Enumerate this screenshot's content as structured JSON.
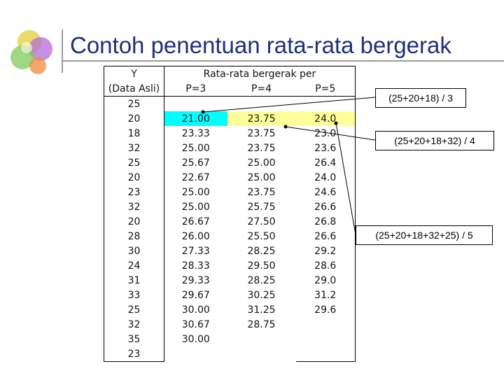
{
  "title": "Contoh penentuan rata-rata bergerak",
  "header": {
    "y_line1": "Y",
    "y_line2": "(Data Asli)",
    "group": "Rata-rata bergerak per",
    "p3": "P=3",
    "p4": "P=4",
    "p5": "P=5"
  },
  "rows": [
    {
      "y": "25",
      "p3": "",
      "p4": "",
      "p5": ""
    },
    {
      "y": "20",
      "p3": "21.00",
      "p4": "23.75",
      "p5": "24.0"
    },
    {
      "y": "18",
      "p3": "23.33",
      "p4": "23.75",
      "p5": "23.0"
    },
    {
      "y": "32",
      "p3": "25.00",
      "p4": "23.75",
      "p5": "23.6"
    },
    {
      "y": "25",
      "p3": "25.67",
      "p4": "25.00",
      "p5": "26.4"
    },
    {
      "y": "20",
      "p3": "22.67",
      "p4": "25.00",
      "p5": "24.0"
    },
    {
      "y": "23",
      "p3": "25.00",
      "p4": "23.75",
      "p5": "24.6"
    },
    {
      "y": "32",
      "p3": "25.00",
      "p4": "25.75",
      "p5": "26.6"
    },
    {
      "y": "20",
      "p3": "26.67",
      "p4": "27.50",
      "p5": "26.8"
    },
    {
      "y": "28",
      "p3": "26.00",
      "p4": "25.50",
      "p5": "26.6"
    },
    {
      "y": "30",
      "p3": "27.33",
      "p4": "28.25",
      "p5": "29.2"
    },
    {
      "y": "24",
      "p3": "28.33",
      "p4": "29.50",
      "p5": "28.6"
    },
    {
      "y": "31",
      "p3": "29.33",
      "p4": "28.25",
      "p5": "29.0"
    },
    {
      "y": "33",
      "p3": "29.67",
      "p4": "30.25",
      "p5": "31.2"
    },
    {
      "y": "25",
      "p3": "30.00",
      "p4": "31.25",
      "p5": "29.6"
    },
    {
      "y": "32",
      "p3": "30.67",
      "p4": "28.75",
      "p5": ""
    },
    {
      "y": "35",
      "p3": "30.00",
      "p4": "",
      "p5": ""
    },
    {
      "y": "23",
      "p3": "",
      "p4": "",
      "p5": ""
    }
  ],
  "callouts": {
    "p3": "(25+20+18) / 3",
    "p4": "(25+20+18+32) / 4",
    "p5": "(25+20+18+32+25) / 5"
  },
  "colors": {
    "title": "#1f2f7a",
    "highlight_p3": "#00ffff",
    "highlight_p4_p5": "#ffff99"
  }
}
